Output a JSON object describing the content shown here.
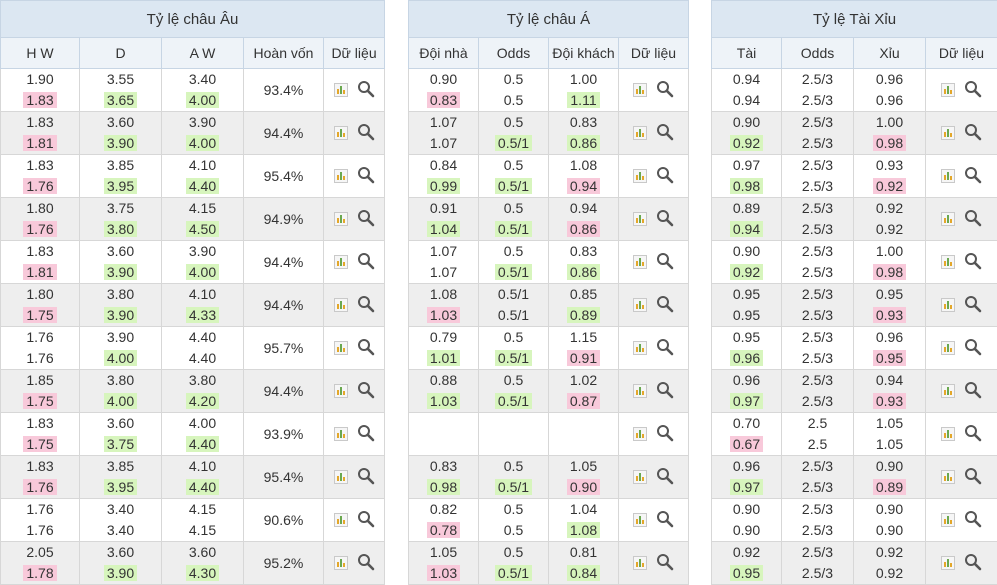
{
  "european": {
    "title": "Tỷ lệ châu Âu",
    "headers": [
      "H W",
      "D",
      "A W",
      "Hoàn vốn",
      "Dữ liệu"
    ],
    "rows": [
      {
        "hw": [
          "1.90",
          "1.83"
        ],
        "d": [
          "3.55",
          "3.65"
        ],
        "aw": [
          "3.40",
          "4.00"
        ],
        "hl": [
          "pink",
          "green",
          "green"
        ],
        "ret": "93.4%"
      },
      {
        "hw": [
          "1.83",
          "1.81"
        ],
        "d": [
          "3.60",
          "3.90"
        ],
        "aw": [
          "3.90",
          "4.00"
        ],
        "hl": [
          "pink",
          "green",
          "green"
        ],
        "ret": "94.4%"
      },
      {
        "hw": [
          "1.83",
          "1.76"
        ],
        "d": [
          "3.85",
          "3.95"
        ],
        "aw": [
          "4.10",
          "4.40"
        ],
        "hl": [
          "pink",
          "green",
          "green"
        ],
        "ret": "95.4%"
      },
      {
        "hw": [
          "1.80",
          "1.76"
        ],
        "d": [
          "3.75",
          "3.80"
        ],
        "aw": [
          "4.15",
          "4.50"
        ],
        "hl": [
          "pink",
          "green",
          "green"
        ],
        "ret": "94.9%"
      },
      {
        "hw": [
          "1.83",
          "1.81"
        ],
        "d": [
          "3.60",
          "3.90"
        ],
        "aw": [
          "3.90",
          "4.00"
        ],
        "hl": [
          "pink",
          "green",
          "green"
        ],
        "ret": "94.4%"
      },
      {
        "hw": [
          "1.80",
          "1.75"
        ],
        "d": [
          "3.80",
          "3.90"
        ],
        "aw": [
          "4.10",
          "4.33"
        ],
        "hl": [
          "pink",
          "green",
          "green"
        ],
        "ret": "94.4%"
      },
      {
        "hw": [
          "1.76",
          "1.76"
        ],
        "d": [
          "3.90",
          "4.00"
        ],
        "aw": [
          "4.40",
          "4.40"
        ],
        "hl": [
          "",
          "green",
          ""
        ],
        "ret": "95.7%"
      },
      {
        "hw": [
          "1.85",
          "1.75"
        ],
        "d": [
          "3.80",
          "4.00"
        ],
        "aw": [
          "3.80",
          "4.20"
        ],
        "hl": [
          "pink",
          "green",
          "green"
        ],
        "ret": "94.4%"
      },
      {
        "hw": [
          "1.83",
          "1.75"
        ],
        "d": [
          "3.60",
          "3.75"
        ],
        "aw": [
          "4.00",
          "4.40"
        ],
        "hl": [
          "pink",
          "green",
          "green"
        ],
        "ret": "93.9%"
      },
      {
        "hw": [
          "1.83",
          "1.76"
        ],
        "d": [
          "3.85",
          "3.95"
        ],
        "aw": [
          "4.10",
          "4.40"
        ],
        "hl": [
          "pink",
          "green",
          "green"
        ],
        "ret": "95.4%"
      },
      {
        "hw": [
          "1.76",
          "1.76"
        ],
        "d": [
          "3.40",
          "3.40"
        ],
        "aw": [
          "4.15",
          "4.15"
        ],
        "hl": [
          "",
          "",
          ""
        ],
        "ret": "90.6%"
      },
      {
        "hw": [
          "2.05",
          "1.78"
        ],
        "d": [
          "3.60",
          "3.90"
        ],
        "aw": [
          "3.60",
          "4.30"
        ],
        "hl": [
          "pink",
          "green",
          "green"
        ],
        "ret": "95.2%"
      }
    ]
  },
  "asian": {
    "title": "Tỷ lệ châu Á",
    "headers": [
      "Đội nhà",
      "Odds",
      "Đội khách",
      "Dữ liệu"
    ],
    "rows": [
      {
        "home": [
          "0.90",
          "0.83"
        ],
        "odds": [
          "0.5",
          "0.5"
        ],
        "away": [
          "1.00",
          "1.11"
        ],
        "hl": [
          "pink",
          "",
          "green"
        ]
      },
      {
        "home": [
          "1.07",
          "1.07"
        ],
        "odds": [
          "0.5",
          "0.5/1"
        ],
        "away": [
          "0.83",
          "0.86"
        ],
        "hl": [
          "",
          "green",
          "green"
        ]
      },
      {
        "home": [
          "0.84",
          "0.99"
        ],
        "odds": [
          "0.5",
          "0.5/1"
        ],
        "away": [
          "1.08",
          "0.94"
        ],
        "hl": [
          "green",
          "green",
          "pink"
        ]
      },
      {
        "home": [
          "0.91",
          "1.04"
        ],
        "odds": [
          "0.5",
          "0.5/1"
        ],
        "away": [
          "0.94",
          "0.86"
        ],
        "hl": [
          "green",
          "green",
          "pink"
        ]
      },
      {
        "home": [
          "1.07",
          "1.07"
        ],
        "odds": [
          "0.5",
          "0.5/1"
        ],
        "away": [
          "0.83",
          "0.86"
        ],
        "hl": [
          "",
          "green",
          "green"
        ]
      },
      {
        "home": [
          "1.08",
          "1.03"
        ],
        "odds": [
          "0.5/1",
          "0.5/1"
        ],
        "away": [
          "0.85",
          "0.89"
        ],
        "hl": [
          "pink",
          "",
          "green"
        ]
      },
      {
        "home": [
          "0.79",
          "1.01"
        ],
        "odds": [
          "0.5",
          "0.5/1"
        ],
        "away": [
          "1.15",
          "0.91"
        ],
        "hl": [
          "green",
          "green",
          "pink"
        ]
      },
      {
        "home": [
          "0.88",
          "1.03"
        ],
        "odds": [
          "0.5",
          "0.5/1"
        ],
        "away": [
          "1.02",
          "0.87"
        ],
        "hl": [
          "green",
          "green",
          "pink"
        ]
      },
      {
        "home": [
          "",
          ""
        ],
        "odds": [
          "",
          ""
        ],
        "away": [
          "",
          ""
        ],
        "hl": [
          "",
          "",
          ""
        ]
      },
      {
        "home": [
          "0.83",
          "0.98"
        ],
        "odds": [
          "0.5",
          "0.5/1"
        ],
        "away": [
          "1.05",
          "0.90"
        ],
        "hl": [
          "green",
          "green",
          "pink"
        ]
      },
      {
        "home": [
          "0.82",
          "0.78"
        ],
        "odds": [
          "0.5",
          "0.5"
        ],
        "away": [
          "1.04",
          "1.08"
        ],
        "hl": [
          "pink",
          "",
          "green"
        ]
      },
      {
        "home": [
          "1.05",
          "1.03"
        ],
        "odds": [
          "0.5",
          "0.5/1"
        ],
        "away": [
          "0.81",
          "0.84"
        ],
        "hl": [
          "pink",
          "green",
          "green"
        ]
      }
    ]
  },
  "overunder": {
    "title": "Tỷ lệ Tài Xỉu",
    "headers": [
      "Tài",
      "Odds",
      "Xỉu",
      "Dữ liệu"
    ],
    "rows": [
      {
        "over": [
          "0.94",
          "0.94"
        ],
        "odds": [
          "2.5/3",
          "2.5/3"
        ],
        "under": [
          "0.96",
          "0.96"
        ],
        "hl": [
          "",
          "",
          ""
        ]
      },
      {
        "over": [
          "0.90",
          "0.92"
        ],
        "odds": [
          "2.5/3",
          "2.5/3"
        ],
        "under": [
          "1.00",
          "0.98"
        ],
        "hl": [
          "green",
          "",
          "pink"
        ]
      },
      {
        "over": [
          "0.97",
          "0.98"
        ],
        "odds": [
          "2.5/3",
          "2.5/3"
        ],
        "under": [
          "0.93",
          "0.92"
        ],
        "hl": [
          "green",
          "",
          "pink"
        ]
      },
      {
        "over": [
          "0.89",
          "0.94"
        ],
        "odds": [
          "2.5/3",
          "2.5/3"
        ],
        "under": [
          "0.92",
          "0.92"
        ],
        "hl": [
          "green",
          "",
          ""
        ]
      },
      {
        "over": [
          "0.90",
          "0.92"
        ],
        "odds": [
          "2.5/3",
          "2.5/3"
        ],
        "under": [
          "1.00",
          "0.98"
        ],
        "hl": [
          "green",
          "",
          "pink"
        ]
      },
      {
        "over": [
          "0.95",
          "0.95"
        ],
        "odds": [
          "2.5/3",
          "2.5/3"
        ],
        "under": [
          "0.95",
          "0.93"
        ],
        "hl": [
          "",
          "",
          "pink"
        ]
      },
      {
        "over": [
          "0.95",
          "0.96"
        ],
        "odds": [
          "2.5/3",
          "2.5/3"
        ],
        "under": [
          "0.96",
          "0.95"
        ],
        "hl": [
          "green",
          "",
          "pink"
        ]
      },
      {
        "over": [
          "0.96",
          "0.97"
        ],
        "odds": [
          "2.5/3",
          "2.5/3"
        ],
        "under": [
          "0.94",
          "0.93"
        ],
        "hl": [
          "green",
          "",
          "pink"
        ]
      },
      {
        "over": [
          "0.70",
          "0.67"
        ],
        "odds": [
          "2.5",
          "2.5"
        ],
        "under": [
          "1.05",
          "1.05"
        ],
        "hl": [
          "pink",
          "",
          ""
        ]
      },
      {
        "over": [
          "0.96",
          "0.97"
        ],
        "odds": [
          "2.5/3",
          "2.5/3"
        ],
        "under": [
          "0.90",
          "0.89"
        ],
        "hl": [
          "green",
          "",
          "pink"
        ]
      },
      {
        "over": [
          "0.90",
          "0.90"
        ],
        "odds": [
          "2.5/3",
          "2.5/3"
        ],
        "under": [
          "0.90",
          "0.90"
        ],
        "hl": [
          "",
          "",
          ""
        ]
      },
      {
        "over": [
          "0.92",
          "0.95"
        ],
        "odds": [
          "2.5/3",
          "2.5/3"
        ],
        "under": [
          "0.92",
          "0.92"
        ],
        "hl": [
          "green",
          "",
          ""
        ]
      }
    ]
  },
  "icons": {
    "chart": "bar-chart-icon",
    "detail": "magnifier-icon"
  }
}
